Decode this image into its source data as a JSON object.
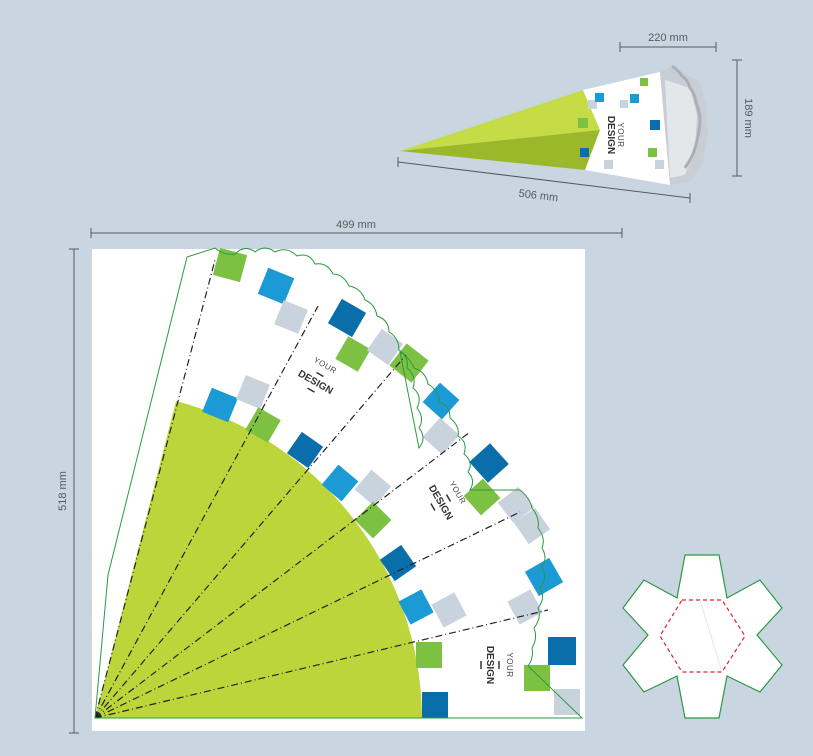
{
  "dimensions": {
    "width_label": "499 mm",
    "height_label": "518 mm",
    "cone_length_label": "506 mm",
    "cone_diameter_label": "220 mm",
    "cone_depth_label": "189 mm"
  },
  "design_text": {
    "line1": "YOUR",
    "line2": "DESIGN"
  },
  "colors": {
    "background": "#c9d6e2",
    "lime": "#bcd53a",
    "green": "#7dc143",
    "blue": "#1b9ad6",
    "dark_blue": "#0a6eab",
    "grey_square": "#c9d3de",
    "cut_line": "#2a9a3f",
    "fold_line": "#222222",
    "insert_fold": "#d9262b"
  },
  "icons": {
    "cone_illustration": "cone-icon",
    "lid_insert": "hexagon-star-insert-icon"
  }
}
